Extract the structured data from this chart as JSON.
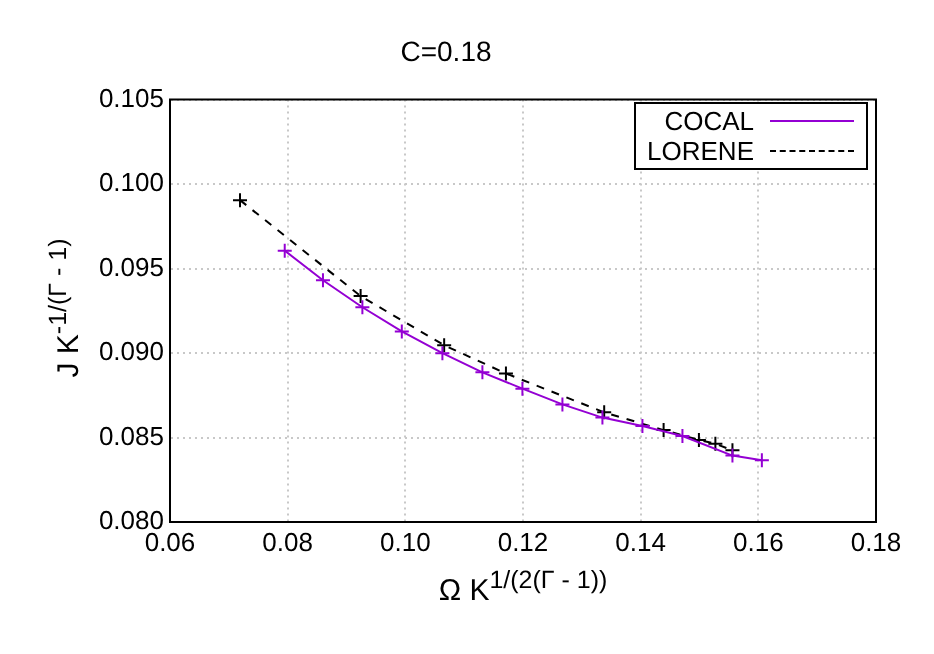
{
  "chart_data": {
    "type": "line",
    "title": "C=0.18",
    "xlabel": "Ω K$^{1/(2(Γ - 1))}$",
    "ylabel": "J K$^{-1/(Γ - 1)}$",
    "series": [
      {
        "name": "COCAL",
        "color": "#9400d3",
        "line_style": "solid",
        "marker": "cross",
        "x": [
          0.0795,
          0.086,
          0.0927,
          0.0994,
          0.1063,
          0.1131,
          0.1199,
          0.1267,
          0.1335,
          0.1403,
          0.1471,
          0.1556,
          0.1606
        ],
        "values": [
          0.09606,
          0.09431,
          0.09271,
          0.09128,
          0.08999,
          0.08886,
          0.08789,
          0.08696,
          0.08618,
          0.08568,
          0.08509,
          0.08393,
          0.08365
        ]
      },
      {
        "name": "LORENE",
        "color": "#000000",
        "line_style": "dashed",
        "marker": "cross",
        "x": [
          0.0719,
          0.0924,
          0.1066,
          0.1171,
          0.1338,
          0.1439,
          0.1499,
          0.1527,
          0.1556
        ],
        "values": [
          0.09905,
          0.09337,
          0.09046,
          0.08879,
          0.08649,
          0.08544,
          0.08486,
          0.08463,
          0.08424
        ]
      }
    ],
    "xlim": [
      0.06,
      0.18
    ],
    "xticks": [
      0.06,
      0.08,
      {
        "value": 0.1,
        "label": "0.10"
      },
      0.12,
      0.14,
      0.16,
      0.18
    ],
    "ylim": [
      0.08,
      0.105
    ],
    "yticks": [
      {
        "value": 0.08,
        "label": "0.080"
      },
      0.085,
      {
        "value": 0.09,
        "label": "0.090"
      },
      0.095,
      {
        "value": 0.1,
        "label": "0.100"
      },
      0.105
    ],
    "grid": true,
    "legend": "top right"
  }
}
